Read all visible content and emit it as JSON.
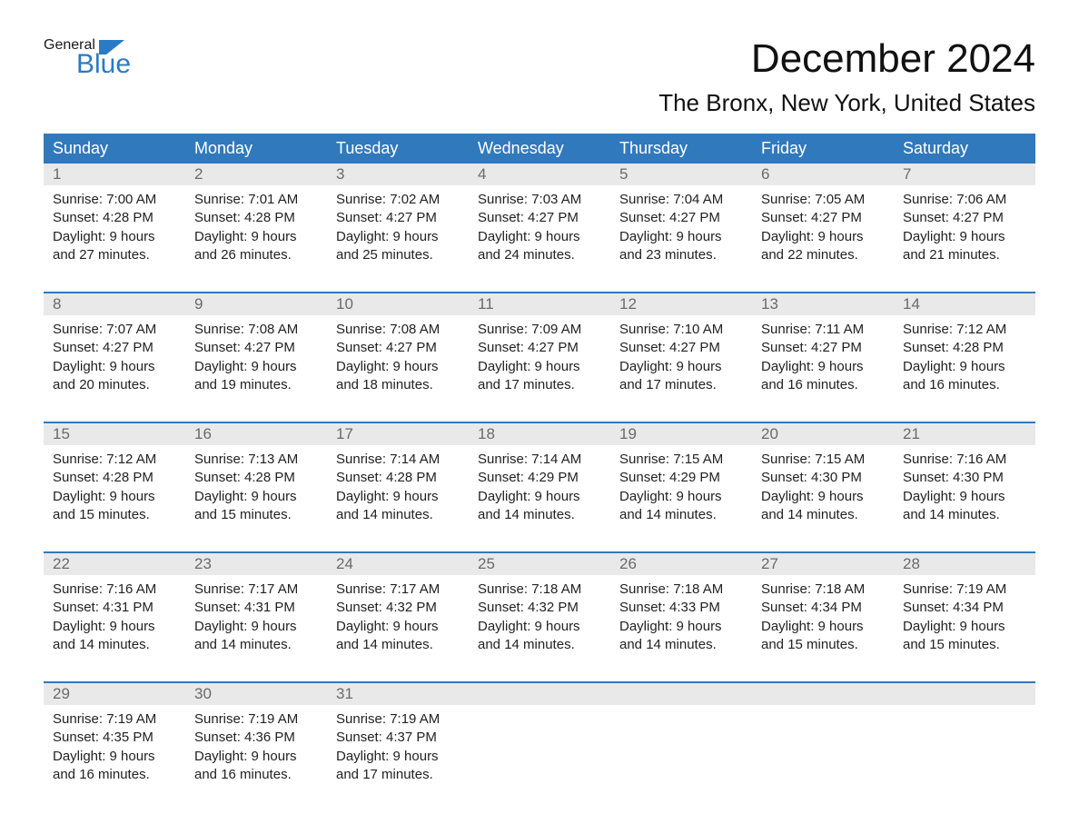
{
  "logo": {
    "word1": "General",
    "word2": "Blue"
  },
  "title": "December 2024",
  "location": "The Bronx, New York, United States",
  "colors": {
    "header_bg": "#3179bd",
    "header_text": "#ffffff",
    "daynum_bg": "#e9e9e9",
    "daynum_text": "#6a6a6a",
    "body_text": "#222222",
    "logo_blue": "#2a7bc4",
    "page_bg": "#ffffff"
  },
  "typography": {
    "title_fontsize": 44,
    "location_fontsize": 26,
    "header_fontsize": 18,
    "daynum_fontsize": 17,
    "detail_fontsize": 15,
    "font_family": "Arial"
  },
  "days_of_week": [
    "Sunday",
    "Monday",
    "Tuesday",
    "Wednesday",
    "Thursday",
    "Friday",
    "Saturday"
  ],
  "weeks": [
    [
      {
        "n": "1",
        "sr": "Sunrise: 7:00 AM",
        "ss": "Sunset: 4:28 PM",
        "d1": "Daylight: 9 hours",
        "d2": "and 27 minutes."
      },
      {
        "n": "2",
        "sr": "Sunrise: 7:01 AM",
        "ss": "Sunset: 4:28 PM",
        "d1": "Daylight: 9 hours",
        "d2": "and 26 minutes."
      },
      {
        "n": "3",
        "sr": "Sunrise: 7:02 AM",
        "ss": "Sunset: 4:27 PM",
        "d1": "Daylight: 9 hours",
        "d2": "and 25 minutes."
      },
      {
        "n": "4",
        "sr": "Sunrise: 7:03 AM",
        "ss": "Sunset: 4:27 PM",
        "d1": "Daylight: 9 hours",
        "d2": "and 24 minutes."
      },
      {
        "n": "5",
        "sr": "Sunrise: 7:04 AM",
        "ss": "Sunset: 4:27 PM",
        "d1": "Daylight: 9 hours",
        "d2": "and 23 minutes."
      },
      {
        "n": "6",
        "sr": "Sunrise: 7:05 AM",
        "ss": "Sunset: 4:27 PM",
        "d1": "Daylight: 9 hours",
        "d2": "and 22 minutes."
      },
      {
        "n": "7",
        "sr": "Sunrise: 7:06 AM",
        "ss": "Sunset: 4:27 PM",
        "d1": "Daylight: 9 hours",
        "d2": "and 21 minutes."
      }
    ],
    [
      {
        "n": "8",
        "sr": "Sunrise: 7:07 AM",
        "ss": "Sunset: 4:27 PM",
        "d1": "Daylight: 9 hours",
        "d2": "and 20 minutes."
      },
      {
        "n": "9",
        "sr": "Sunrise: 7:08 AM",
        "ss": "Sunset: 4:27 PM",
        "d1": "Daylight: 9 hours",
        "d2": "and 19 minutes."
      },
      {
        "n": "10",
        "sr": "Sunrise: 7:08 AM",
        "ss": "Sunset: 4:27 PM",
        "d1": "Daylight: 9 hours",
        "d2": "and 18 minutes."
      },
      {
        "n": "11",
        "sr": "Sunrise: 7:09 AM",
        "ss": "Sunset: 4:27 PM",
        "d1": "Daylight: 9 hours",
        "d2": "and 17 minutes."
      },
      {
        "n": "12",
        "sr": "Sunrise: 7:10 AM",
        "ss": "Sunset: 4:27 PM",
        "d1": "Daylight: 9 hours",
        "d2": "and 17 minutes."
      },
      {
        "n": "13",
        "sr": "Sunrise: 7:11 AM",
        "ss": "Sunset: 4:27 PM",
        "d1": "Daylight: 9 hours",
        "d2": "and 16 minutes."
      },
      {
        "n": "14",
        "sr": "Sunrise: 7:12 AM",
        "ss": "Sunset: 4:28 PM",
        "d1": "Daylight: 9 hours",
        "d2": "and 16 minutes."
      }
    ],
    [
      {
        "n": "15",
        "sr": "Sunrise: 7:12 AM",
        "ss": "Sunset: 4:28 PM",
        "d1": "Daylight: 9 hours",
        "d2": "and 15 minutes."
      },
      {
        "n": "16",
        "sr": "Sunrise: 7:13 AM",
        "ss": "Sunset: 4:28 PM",
        "d1": "Daylight: 9 hours",
        "d2": "and 15 minutes."
      },
      {
        "n": "17",
        "sr": "Sunrise: 7:14 AM",
        "ss": "Sunset: 4:28 PM",
        "d1": "Daylight: 9 hours",
        "d2": "and 14 minutes."
      },
      {
        "n": "18",
        "sr": "Sunrise: 7:14 AM",
        "ss": "Sunset: 4:29 PM",
        "d1": "Daylight: 9 hours",
        "d2": "and 14 minutes."
      },
      {
        "n": "19",
        "sr": "Sunrise: 7:15 AM",
        "ss": "Sunset: 4:29 PM",
        "d1": "Daylight: 9 hours",
        "d2": "and 14 minutes."
      },
      {
        "n": "20",
        "sr": "Sunrise: 7:15 AM",
        "ss": "Sunset: 4:30 PM",
        "d1": "Daylight: 9 hours",
        "d2": "and 14 minutes."
      },
      {
        "n": "21",
        "sr": "Sunrise: 7:16 AM",
        "ss": "Sunset: 4:30 PM",
        "d1": "Daylight: 9 hours",
        "d2": "and 14 minutes."
      }
    ],
    [
      {
        "n": "22",
        "sr": "Sunrise: 7:16 AM",
        "ss": "Sunset: 4:31 PM",
        "d1": "Daylight: 9 hours",
        "d2": "and 14 minutes."
      },
      {
        "n": "23",
        "sr": "Sunrise: 7:17 AM",
        "ss": "Sunset: 4:31 PM",
        "d1": "Daylight: 9 hours",
        "d2": "and 14 minutes."
      },
      {
        "n": "24",
        "sr": "Sunrise: 7:17 AM",
        "ss": "Sunset: 4:32 PM",
        "d1": "Daylight: 9 hours",
        "d2": "and 14 minutes."
      },
      {
        "n": "25",
        "sr": "Sunrise: 7:18 AM",
        "ss": "Sunset: 4:32 PM",
        "d1": "Daylight: 9 hours",
        "d2": "and 14 minutes."
      },
      {
        "n": "26",
        "sr": "Sunrise: 7:18 AM",
        "ss": "Sunset: 4:33 PM",
        "d1": "Daylight: 9 hours",
        "d2": "and 14 minutes."
      },
      {
        "n": "27",
        "sr": "Sunrise: 7:18 AM",
        "ss": "Sunset: 4:34 PM",
        "d1": "Daylight: 9 hours",
        "d2": "and 15 minutes."
      },
      {
        "n": "28",
        "sr": "Sunrise: 7:19 AM",
        "ss": "Sunset: 4:34 PM",
        "d1": "Daylight: 9 hours",
        "d2": "and 15 minutes."
      }
    ],
    [
      {
        "n": "29",
        "sr": "Sunrise: 7:19 AM",
        "ss": "Sunset: 4:35 PM",
        "d1": "Daylight: 9 hours",
        "d2": "and 16 minutes."
      },
      {
        "n": "30",
        "sr": "Sunrise: 7:19 AM",
        "ss": "Sunset: 4:36 PM",
        "d1": "Daylight: 9 hours",
        "d2": "and 16 minutes."
      },
      {
        "n": "31",
        "sr": "Sunrise: 7:19 AM",
        "ss": "Sunset: 4:37 PM",
        "d1": "Daylight: 9 hours",
        "d2": "and 17 minutes."
      },
      {
        "n": "",
        "sr": "",
        "ss": "",
        "d1": "",
        "d2": ""
      },
      {
        "n": "",
        "sr": "",
        "ss": "",
        "d1": "",
        "d2": ""
      },
      {
        "n": "",
        "sr": "",
        "ss": "",
        "d1": "",
        "d2": ""
      },
      {
        "n": "",
        "sr": "",
        "ss": "",
        "d1": "",
        "d2": ""
      }
    ]
  ]
}
